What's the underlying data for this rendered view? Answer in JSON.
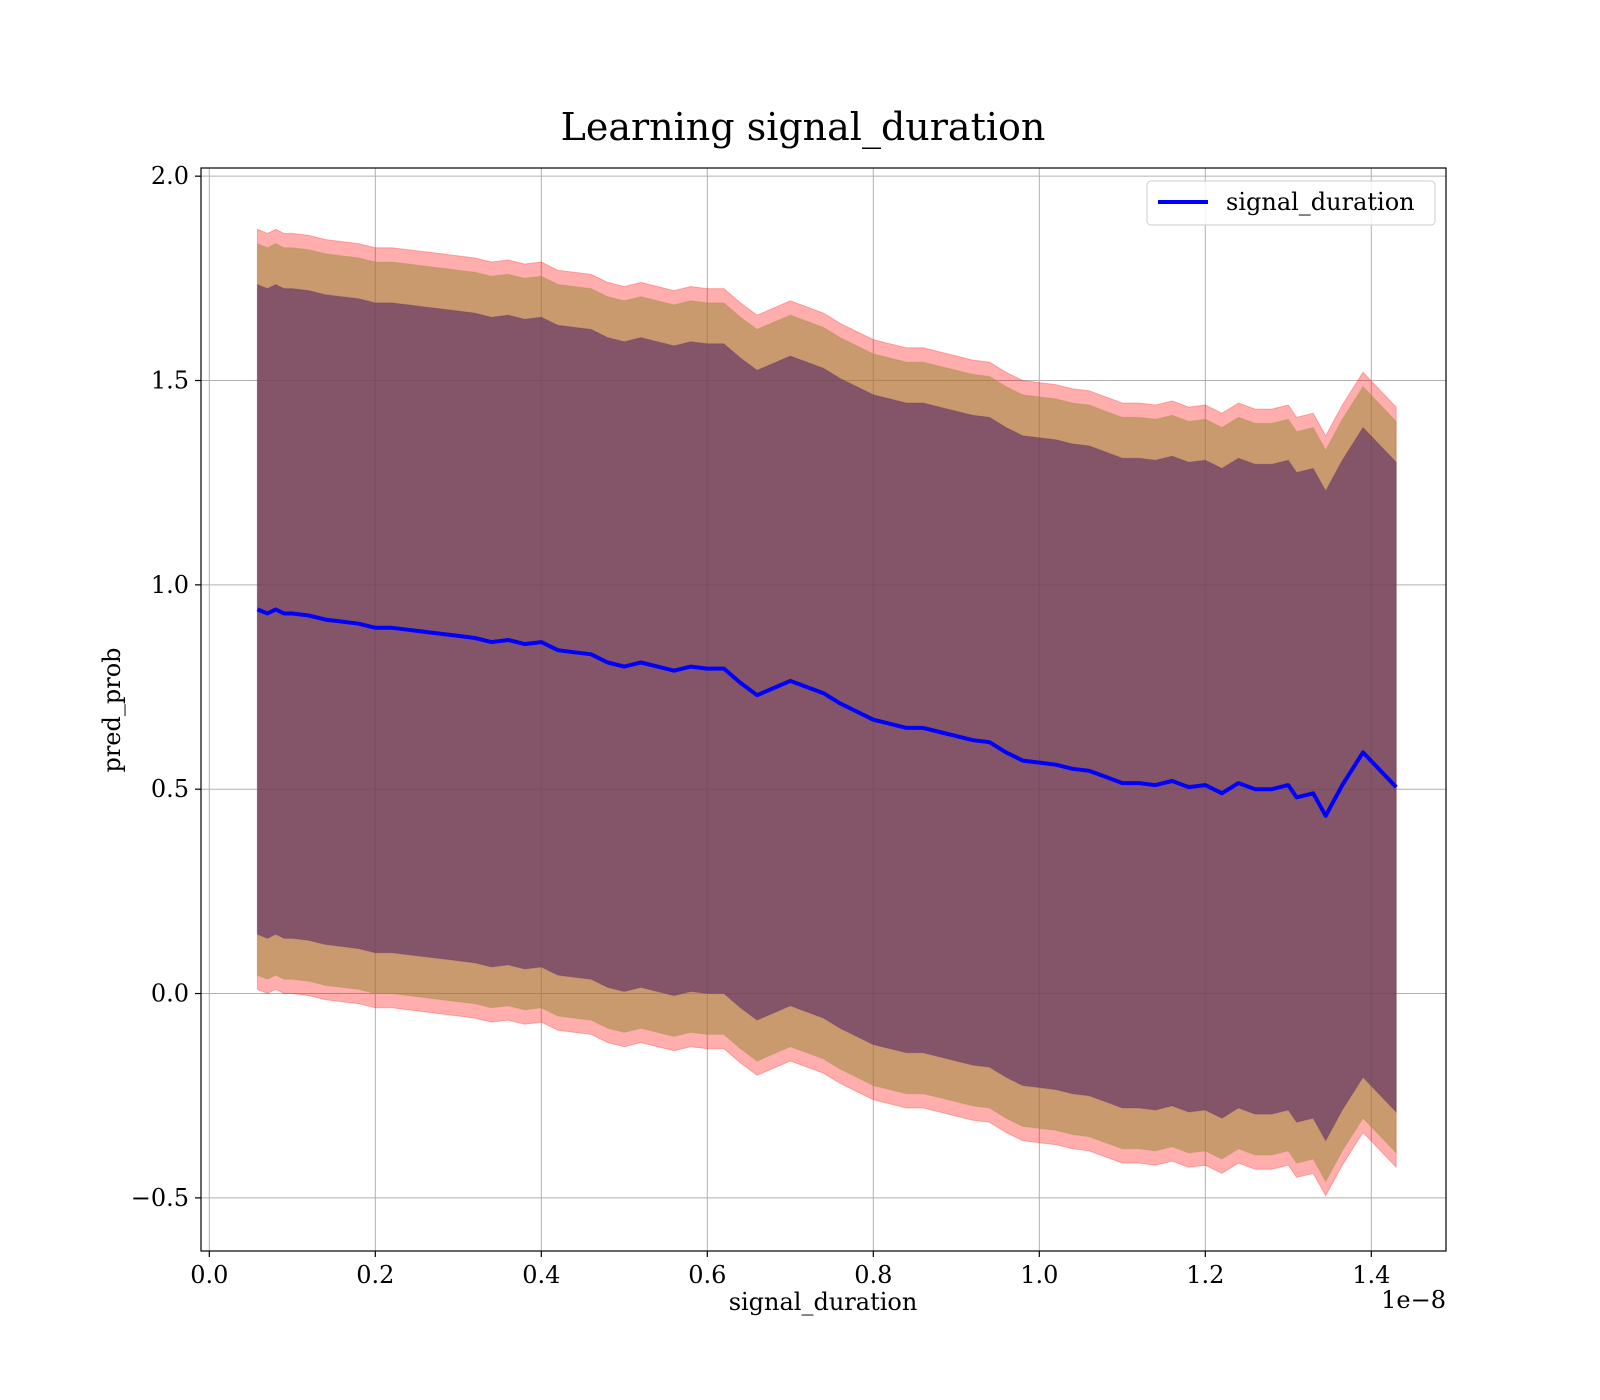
{
  "chart_data": {
    "type": "line",
    "title": "Learning signal_duration",
    "xlabel": "signal_duration",
    "ylabel": "pred_prob",
    "x_offset_label": "1e−8",
    "xlim": [
      -0.01,
      1.49
    ],
    "ylim": [
      -0.63,
      2.02
    ],
    "x_ticks": [
      0.0,
      0.2,
      0.4,
      0.6,
      0.8,
      1.0,
      1.2,
      1.4
    ],
    "x_tick_labels": [
      "0.0",
      "0.2",
      "0.4",
      "0.6",
      "0.8",
      "1.0",
      "1.2",
      "1.4"
    ],
    "y_ticks": [
      -0.5,
      0.0,
      0.5,
      1.0,
      1.5,
      2.0
    ],
    "y_tick_labels": [
      "−0.5",
      "0.0",
      "0.5",
      "1.0",
      "1.5",
      "2.0"
    ],
    "grid": true,
    "legend": {
      "position": "top-right",
      "entries": [
        "signal_duration"
      ]
    },
    "colors": {
      "line": "#0000ff",
      "outer_band": "#ff0000",
      "mid_band": "#9a8a3a",
      "inner_band": "#5a2a66"
    },
    "band_half_widths": {
      "outer": 0.93,
      "mid": 0.895,
      "inner": 0.795
    },
    "series": [
      {
        "name": "signal_duration",
        "x": [
          0.058,
          0.07,
          0.08,
          0.09,
          0.1,
          0.12,
          0.14,
          0.16,
          0.18,
          0.2,
          0.22,
          0.24,
          0.26,
          0.28,
          0.3,
          0.32,
          0.34,
          0.36,
          0.38,
          0.4,
          0.42,
          0.44,
          0.46,
          0.48,
          0.5,
          0.52,
          0.54,
          0.56,
          0.58,
          0.6,
          0.62,
          0.64,
          0.66,
          0.7,
          0.74,
          0.76,
          0.78,
          0.8,
          0.82,
          0.84,
          0.86,
          0.88,
          0.9,
          0.92,
          0.94,
          0.96,
          0.98,
          1.0,
          1.02,
          1.04,
          1.06,
          1.08,
          1.1,
          1.12,
          1.14,
          1.16,
          1.18,
          1.2,
          1.22,
          1.24,
          1.26,
          1.28,
          1.3,
          1.31,
          1.33,
          1.345,
          1.365,
          1.39,
          1.43
        ],
        "y": [
          0.94,
          0.93,
          0.94,
          0.93,
          0.93,
          0.925,
          0.915,
          0.91,
          0.905,
          0.895,
          0.895,
          0.89,
          0.885,
          0.88,
          0.875,
          0.87,
          0.86,
          0.865,
          0.855,
          0.86,
          0.84,
          0.835,
          0.83,
          0.81,
          0.8,
          0.81,
          0.8,
          0.79,
          0.8,
          0.795,
          0.795,
          0.76,
          0.73,
          0.765,
          0.735,
          0.71,
          0.69,
          0.67,
          0.66,
          0.65,
          0.65,
          0.64,
          0.63,
          0.62,
          0.615,
          0.59,
          0.57,
          0.565,
          0.56,
          0.55,
          0.545,
          0.53,
          0.515,
          0.515,
          0.51,
          0.52,
          0.505,
          0.51,
          0.49,
          0.515,
          0.5,
          0.5,
          0.51,
          0.48,
          0.49,
          0.435,
          0.51,
          0.59,
          0.505
        ]
      }
    ]
  }
}
